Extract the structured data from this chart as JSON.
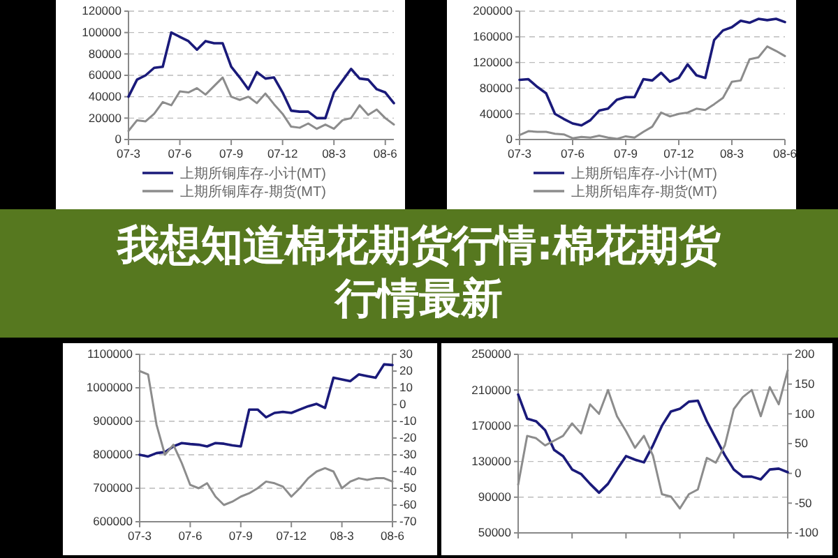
{
  "chart_data": [
    {
      "type": "line",
      "categories": [
        "07-3",
        null,
        null,
        null,
        null,
        null,
        "07-6",
        null,
        null,
        null,
        null,
        null,
        "07-9",
        null,
        null,
        null,
        null,
        null,
        "07-12",
        null,
        null,
        null,
        null,
        null,
        "08-3",
        null,
        null,
        null,
        null,
        null,
        "08-6",
        null
      ],
      "ylim": [
        0,
        120000
      ],
      "yticks": [
        0,
        20000,
        40000,
        60000,
        80000,
        100000,
        120000
      ],
      "grid": "y",
      "legend": "bottom",
      "series": [
        {
          "name": "上期所铜库存-小计(MT)",
          "color": "#1a1a7a",
          "values": [
            40000,
            56000,
            60000,
            67000,
            68000,
            100000,
            96000,
            92000,
            84000,
            92000,
            90000,
            90000,
            68000,
            58000,
            47000,
            63000,
            57000,
            58000,
            44000,
            27000,
            26000,
            26000,
            20000,
            20000,
            44000,
            55000,
            66000,
            57000,
            56000,
            47000,
            44000,
            34000
          ]
        },
        {
          "name": "上期所铜库存-期货(MT)",
          "color": "#8c8c8c",
          "values": [
            8000,
            18000,
            17000,
            24000,
            35000,
            32000,
            45000,
            44000,
            48000,
            42000,
            50000,
            58000,
            40000,
            37000,
            40000,
            34000,
            43000,
            33000,
            24000,
            12000,
            11000,
            15000,
            10000,
            14000,
            10000,
            18000,
            20000,
            32000,
            23000,
            28000,
            20000,
            14000
          ]
        }
      ]
    },
    {
      "type": "line",
      "categories": [
        "07-3",
        null,
        null,
        null,
        null,
        null,
        "07-6",
        null,
        null,
        null,
        null,
        null,
        "07-9",
        null,
        null,
        null,
        null,
        null,
        "07-12",
        null,
        null,
        null,
        null,
        null,
        "08-3",
        null,
        null,
        null,
        null,
        null,
        "08-6"
      ],
      "ylim": [
        0,
        200000
      ],
      "yticks": [
        0,
        40000,
        80000,
        120000,
        160000,
        200000
      ],
      "grid": "y",
      "legend": "bottom",
      "series": [
        {
          "name": "上期所铝库存-小计(MT)",
          "color": "#1a1a7a",
          "values": [
            93000,
            94000,
            82000,
            72000,
            40000,
            32000,
            25000,
            22000,
            30000,
            45000,
            48000,
            62000,
            66000,
            66000,
            94000,
            92000,
            104000,
            90000,
            96000,
            117000,
            100000,
            96000,
            155000,
            170000,
            175000,
            185000,
            182000,
            188000,
            186000,
            188000,
            183000
          ]
        },
        {
          "name": "上期所铝库存-期货(MT)",
          "color": "#8c8c8c",
          "values": [
            7000,
            13000,
            12000,
            12000,
            9000,
            8000,
            2000,
            4000,
            3000,
            6000,
            3000,
            1000,
            5000,
            3000,
            12000,
            20000,
            42000,
            36000,
            40000,
            42000,
            48000,
            46000,
            55000,
            65000,
            90000,
            92000,
            125000,
            128000,
            145000,
            138000,
            130000
          ]
        }
      ]
    },
    {
      "type": "other",
      "title": "我想知道棉花期货行情:棉花期货行情最新"
    },
    {
      "type": "line",
      "categories": [
        "07-3",
        null,
        null,
        null,
        null,
        null,
        "07-6",
        null,
        null,
        null,
        null,
        null,
        "07-9",
        null,
        null,
        null,
        null,
        null,
        "07-12",
        null,
        null,
        null,
        null,
        null,
        "08-3",
        null,
        null,
        null,
        null,
        null,
        "08-6"
      ],
      "ylim": [
        600000,
        1100000
      ],
      "yticks": [
        600000,
        700000,
        800000,
        900000,
        1000000,
        1100000
      ],
      "y2lim": [
        -70,
        30
      ],
      "y2ticks": [
        -70,
        -60,
        -50,
        -40,
        -30,
        -20,
        -10,
        0,
        10,
        20,
        30
      ],
      "grid": "y",
      "series": [
        {
          "color": "#1a1a7a",
          "values": [
            800000,
            795000,
            805000,
            808000,
            825000,
            835000,
            832000,
            830000,
            825000,
            835000,
            833000,
            828000,
            825000,
            935000,
            935000,
            912000,
            925000,
            928000,
            925000,
            935000,
            945000,
            952000,
            940000,
            1030000,
            1025000,
            1020000,
            1040000,
            1035000,
            1030000,
            1070000,
            1068000
          ]
        },
        {
          "color": "#8c8c8c",
          "axis": "y2",
          "values": [
            20,
            18,
            -12,
            -30,
            -24,
            -35,
            -48,
            -50,
            -47,
            -55,
            -60,
            -58,
            -55,
            -53,
            -50,
            -46,
            -47,
            -49,
            -55,
            -50,
            -44,
            -40,
            -38,
            -40,
            -50,
            -46,
            -44,
            -45,
            -44,
            -44,
            -46
          ]
        }
      ]
    },
    {
      "type": "line",
      "categories": [
        null,
        null,
        null,
        null,
        null,
        null,
        null,
        null,
        null,
        null,
        null,
        null,
        null,
        null,
        null,
        null,
        null,
        null,
        null,
        null,
        null,
        null,
        null,
        null,
        null,
        null,
        null,
        null,
        null,
        null,
        null
      ],
      "ylim": [
        50000,
        250000
      ],
      "yticks": [
        50000,
        90000,
        130000,
        170000,
        210000,
        250000
      ],
      "y2lim": [
        -100,
        200
      ],
      "y2ticks": [
        -100,
        -50,
        0,
        50,
        100,
        150,
        200
      ],
      "grid": "y",
      "series": [
        {
          "color": "#1a1a7a",
          "values": [
            205000,
            178000,
            175000,
            165000,
            143000,
            136000,
            121000,
            116000,
            105000,
            95000,
            105000,
            121000,
            136000,
            132000,
            129000,
            148000,
            170000,
            186000,
            189000,
            197000,
            198000,
            175000,
            156000,
            137000,
            121000,
            113000,
            113000,
            110000,
            121000,
            122000,
            118000
          ]
        },
        {
          "color": "#8c8c8c",
          "axis": "y2",
          "values": [
            -19,
            63,
            59,
            47,
            55,
            63,
            84,
            67,
            116,
            100,
            140,
            96,
            71,
            43,
            63,
            30,
            -35,
            -39,
            -59,
            -35,
            -27,
            26,
            18,
            47,
            108,
            128,
            140,
            96,
            145,
            116,
            173
          ]
        }
      ]
    }
  ]
}
